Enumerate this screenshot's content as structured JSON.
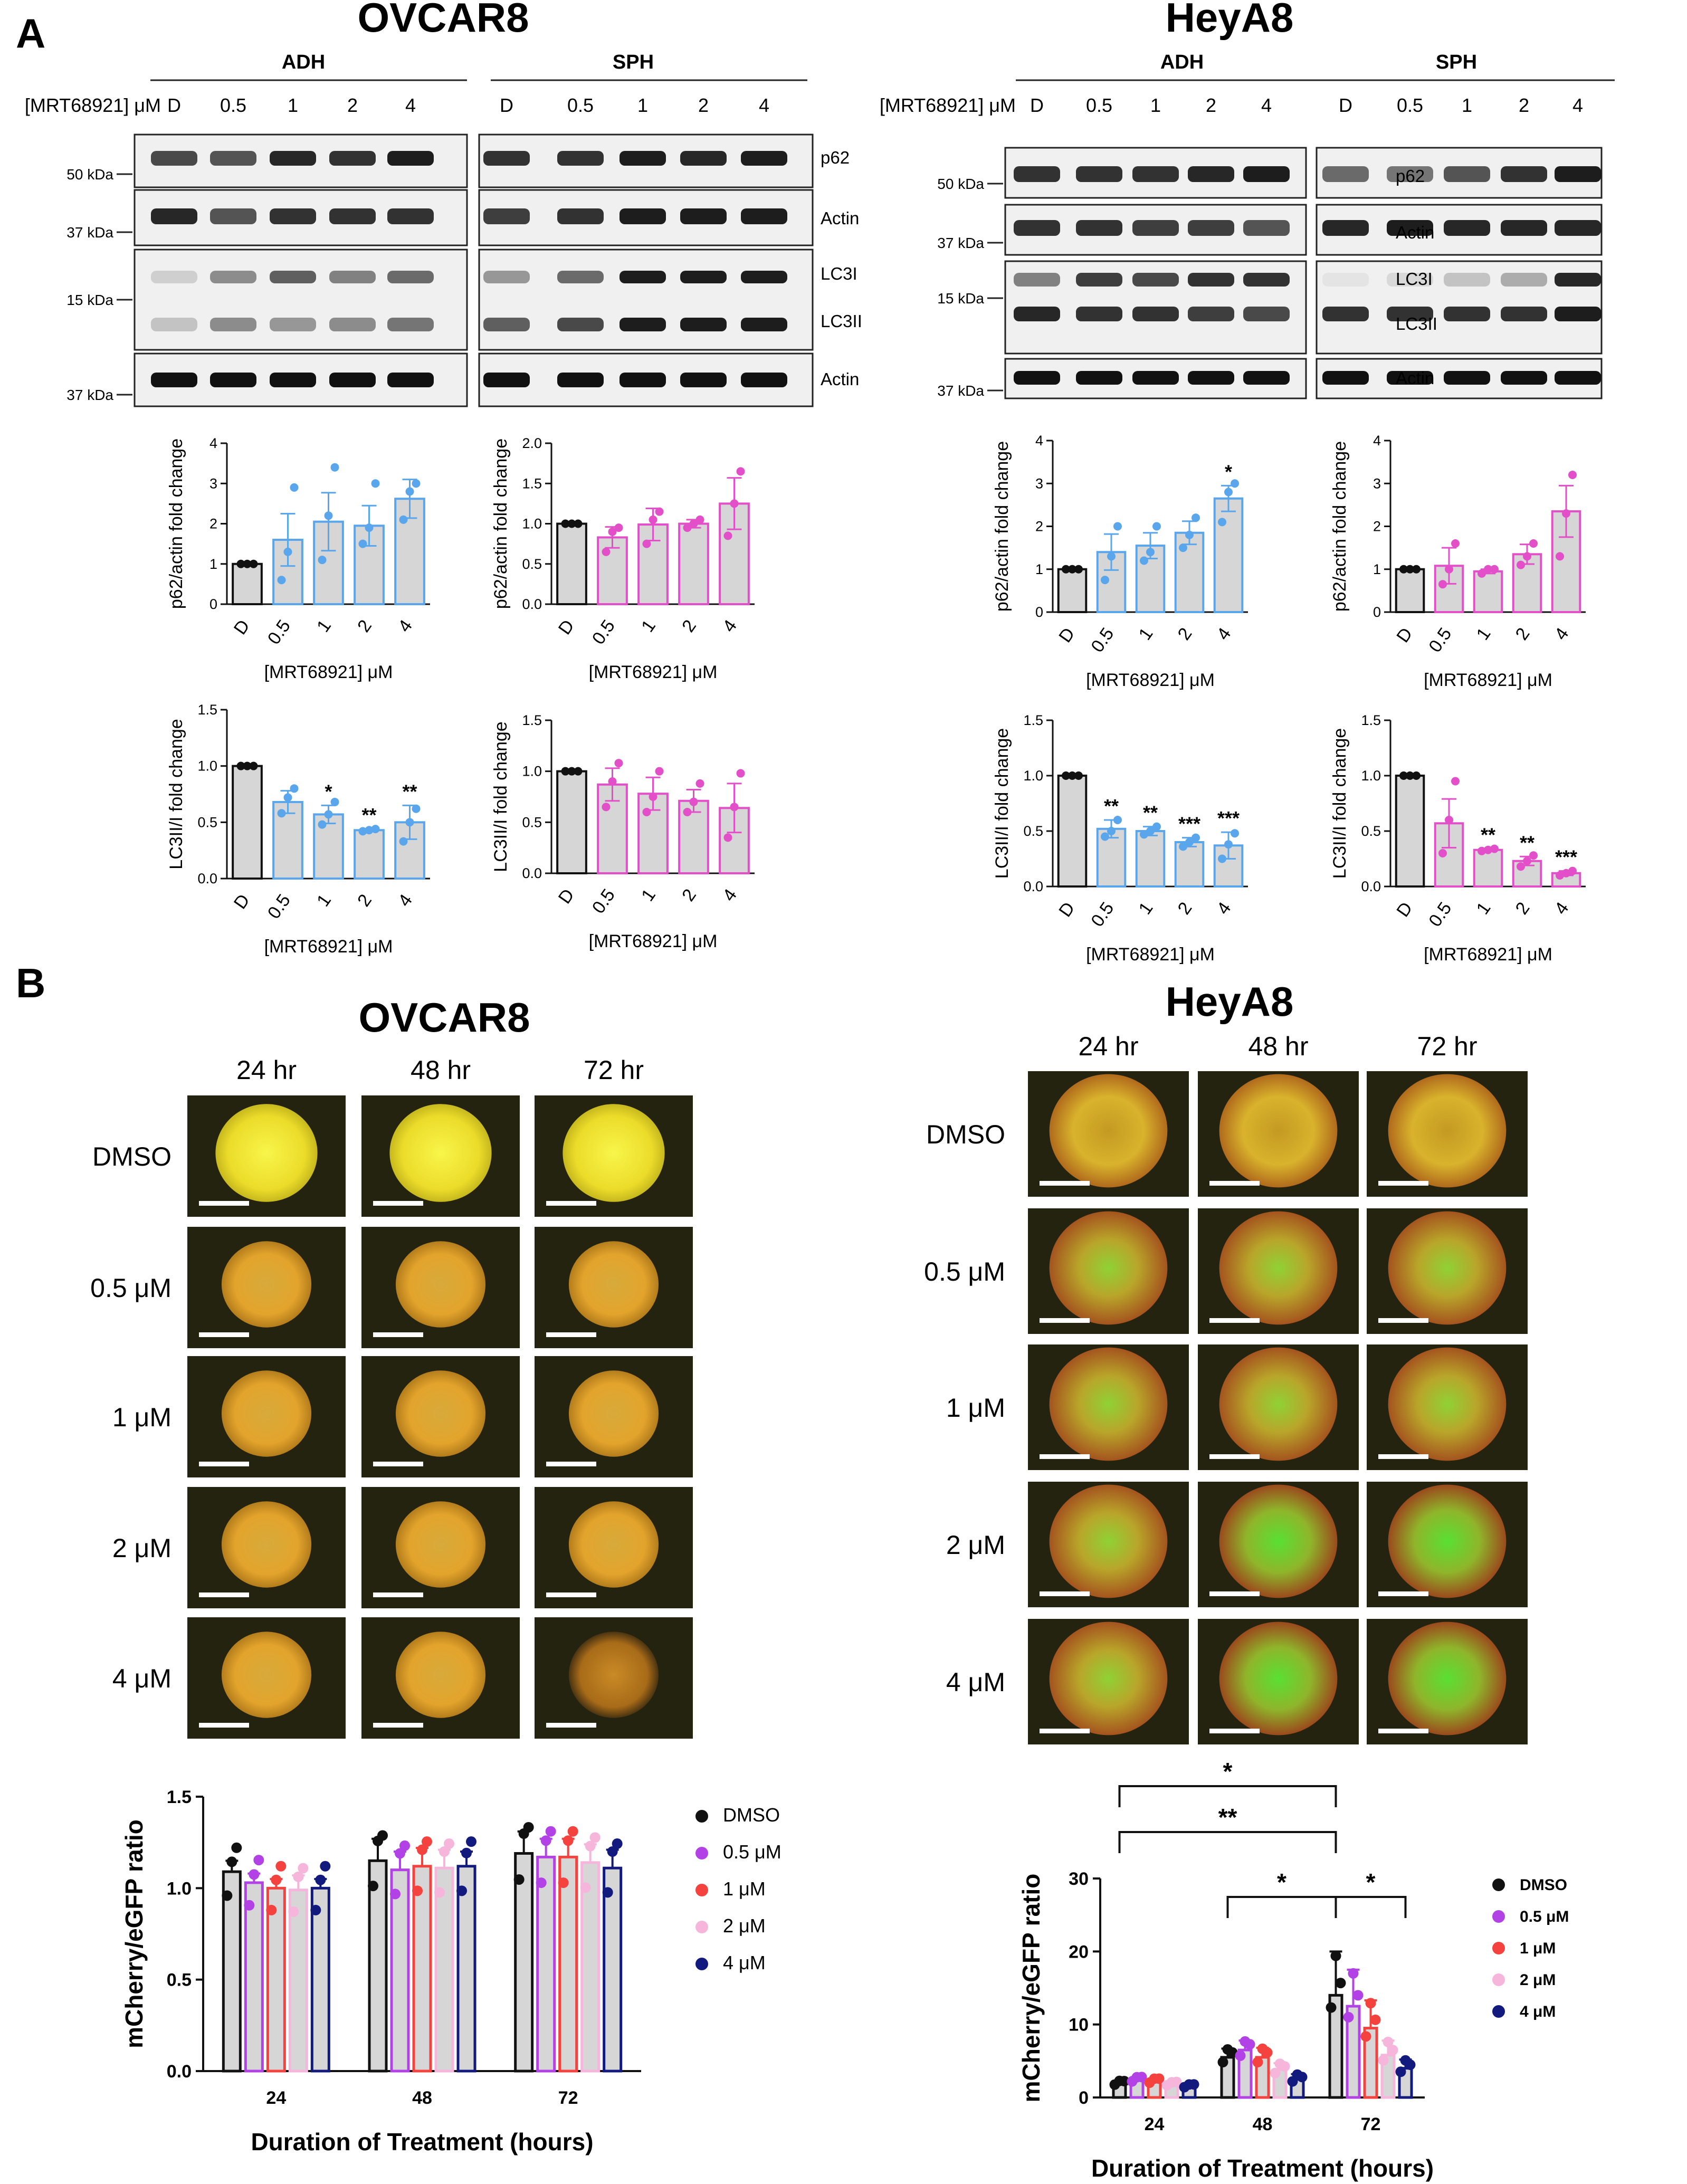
{
  "panel_labels": {
    "a": "A",
    "b": "B"
  },
  "colors": {
    "black": "#111111",
    "blue": "#59a6ec",
    "magenta": "#e24fc9",
    "bar_fill": "#d6d6d6",
    "mcherry_dmso": "#111111",
    "mcherry_05": "#b342e6",
    "mcherry_1": "#f4433e",
    "mcherry_2": "#f6b6dc",
    "mcherry_4": "#131a7d",
    "blot_bg": "#f0f0f0",
    "micro_bg": "#23230f"
  },
  "western": {
    "drug_label": "[MRT68921] μM",
    "lanes": [
      "D",
      "0.5",
      "1",
      "2",
      "4"
    ],
    "groups": [
      "ADH",
      "SPH"
    ],
    "ovcar8": {
      "title": "OVCAR8",
      "bands": [
        "p62",
        "Actin",
        "LC3I",
        "LC3II",
        "Actin"
      ],
      "markers": [
        "50 kDa",
        "37 kDa",
        "15 kDa",
        "37 kDa"
      ]
    },
    "heya8": {
      "title": "HeyA8",
      "bands": [
        "p62",
        "Actin",
        "LC3I",
        "LC3II",
        "Actin"
      ],
      "markers": [
        "50 kDa",
        "37 kDa",
        "15 kDa",
        "37 kDa"
      ]
    }
  },
  "chart_data": [
    {
      "id": "ovcar8-adh-p62",
      "type": "bar",
      "categories": [
        "D",
        "0.5",
        "1",
        "2",
        "4"
      ],
      "values": [
        1.0,
        1.6,
        2.05,
        1.95,
        2.62
      ],
      "errors": [
        0,
        0.65,
        0.72,
        0.5,
        0.48
      ],
      "points": [
        [
          1,
          1,
          1
        ],
        [
          0.6,
          1.3,
          2.9
        ],
        [
          1.1,
          2.2,
          3.4
        ],
        [
          1.5,
          1.9,
          3.0
        ],
        [
          2.1,
          2.8,
          3.0
        ]
      ],
      "ylabel": "p62/actin fold change",
      "xlabel": "[MRT68921] μM",
      "ylim": [
        0,
        4
      ],
      "yticks": [
        "0",
        "1",
        "2",
        "3",
        "4"
      ],
      "sig": [
        "",
        "",
        "",
        "",
        ""
      ],
      "color": "blue"
    },
    {
      "id": "ovcar8-sph-p62",
      "type": "bar",
      "categories": [
        "D",
        "0.5",
        "1",
        "2",
        "4"
      ],
      "values": [
        1.0,
        0.83,
        0.99,
        1.0,
        1.25
      ],
      "errors": [
        0,
        0.13,
        0.2,
        0.05,
        0.32
      ],
      "points": [
        [
          1,
          1,
          1
        ],
        [
          0.65,
          0.9,
          0.95
        ],
        [
          0.75,
          1.05,
          1.15
        ],
        [
          0.95,
          1.0,
          1.05
        ],
        [
          0.85,
          1.25,
          1.65
        ]
      ],
      "ylabel": "p62/actin fold change",
      "xlabel": "[MRT68921] μM",
      "ylim": [
        0,
        2.0
      ],
      "yticks": [
        "0.0",
        "0.5",
        "1.0",
        "1.5",
        "2.0"
      ],
      "sig": [
        "",
        "",
        "",
        "",
        ""
      ],
      "color": "magenta"
    },
    {
      "id": "heya8-adh-p62",
      "type": "bar",
      "categories": [
        "D",
        "0.5",
        "1",
        "2",
        "4"
      ],
      "values": [
        1.0,
        1.4,
        1.55,
        1.85,
        2.65
      ],
      "errors": [
        0,
        0.42,
        0.3,
        0.27,
        0.3
      ],
      "points": [
        [
          1,
          1,
          1
        ],
        [
          0.75,
          1.3,
          2.0
        ],
        [
          1.2,
          1.4,
          2.0
        ],
        [
          1.5,
          1.8,
          2.2
        ],
        [
          2.1,
          2.8,
          3.0
        ]
      ],
      "ylabel": "p62/actin fold change",
      "xlabel": "[MRT68921] μM",
      "ylim": [
        0,
        4
      ],
      "yticks": [
        "0",
        "1",
        "2",
        "3",
        "4"
      ],
      "sig": [
        "",
        "",
        "",
        "",
        "*"
      ],
      "color": "blue"
    },
    {
      "id": "heya8-sph-p62",
      "type": "bar",
      "categories": [
        "D",
        "0.5",
        "1",
        "2",
        "4"
      ],
      "values": [
        1.0,
        1.08,
        0.95,
        1.35,
        2.35
      ],
      "errors": [
        0,
        0.42,
        0.05,
        0.23,
        0.6
      ],
      "points": [
        [
          1,
          1,
          1
        ],
        [
          0.65,
          1.0,
          1.6
        ],
        [
          0.9,
          1.0,
          1.0
        ],
        [
          1.1,
          1.3,
          1.6
        ],
        [
          1.3,
          2.3,
          3.2
        ]
      ],
      "ylabel": "p62/actin fold change",
      "xlabel": "[MRT68921] μM",
      "ylim": [
        0,
        4
      ],
      "yticks": [
        "0",
        "1",
        "2",
        "3",
        "4"
      ],
      "sig": [
        "",
        "",
        "",
        "",
        ""
      ],
      "color": "magenta"
    },
    {
      "id": "ovcar8-adh-lc3",
      "type": "bar",
      "categories": [
        "D",
        "0.5",
        "1",
        "2",
        "4"
      ],
      "values": [
        1.0,
        0.68,
        0.57,
        0.43,
        0.5
      ],
      "errors": [
        0,
        0.1,
        0.08,
        0.01,
        0.15
      ],
      "points": [
        [
          1,
          1,
          1
        ],
        [
          0.58,
          0.72,
          0.8
        ],
        [
          0.48,
          0.57,
          0.68
        ],
        [
          0.42,
          0.43,
          0.44
        ],
        [
          0.33,
          0.5,
          0.62
        ]
      ],
      "ylabel": "LC3II/I fold change",
      "xlabel": "[MRT68921] μM",
      "ylim": [
        0,
        1.5
      ],
      "yticks": [
        "0.0",
        "0.5",
        "1.0",
        "1.5"
      ],
      "sig": [
        "",
        "",
        "*",
        "**",
        "**"
      ],
      "color": "blue"
    },
    {
      "id": "ovcar8-sph-lc3",
      "type": "bar",
      "categories": [
        "D",
        "0.5",
        "1",
        "2",
        "4"
      ],
      "values": [
        1.0,
        0.87,
        0.78,
        0.71,
        0.64
      ],
      "errors": [
        0,
        0.16,
        0.16,
        0.11,
        0.24
      ],
      "points": [
        [
          1,
          1,
          1
        ],
        [
          0.65,
          0.9,
          1.08
        ],
        [
          0.6,
          0.75,
          1.0
        ],
        [
          0.6,
          0.7,
          0.88
        ],
        [
          0.35,
          0.65,
          0.98
        ]
      ],
      "ylabel": "LC3II/I fold change",
      "xlabel": "[MRT68921] μM",
      "ylim": [
        0,
        1.5
      ],
      "yticks": [
        "0.0",
        "0.5",
        "1.0",
        "1.5"
      ],
      "sig": [
        "",
        "",
        "",
        "",
        ""
      ],
      "color": "magenta"
    },
    {
      "id": "heya8-adh-lc3",
      "type": "bar",
      "categories": [
        "D",
        "0.5",
        "1",
        "2",
        "4"
      ],
      "values": [
        1.0,
        0.52,
        0.5,
        0.4,
        0.37
      ],
      "errors": [
        0,
        0.08,
        0.04,
        0.04,
        0.12
      ],
      "points": [
        [
          1,
          1,
          1
        ],
        [
          0.45,
          0.5,
          0.6
        ],
        [
          0.47,
          0.5,
          0.54
        ],
        [
          0.36,
          0.4,
          0.44
        ],
        [
          0.25,
          0.38,
          0.48
        ]
      ],
      "ylabel": "LC3II/I fold change",
      "xlabel": "[MRT68921] μM",
      "ylim": [
        0,
        1.5
      ],
      "yticks": [
        "0.0",
        "0.5",
        "1.0",
        "1.5"
      ],
      "sig": [
        "",
        "**",
        "**",
        "***",
        "***"
      ],
      "color": "blue"
    },
    {
      "id": "heya8-sph-lc3",
      "type": "bar",
      "categories": [
        "D",
        "0.5",
        "1",
        "2",
        "4"
      ],
      "values": [
        1.0,
        0.57,
        0.33,
        0.23,
        0.12
      ],
      "errors": [
        0,
        0.22,
        0.01,
        0.04,
        0.02
      ],
      "points": [
        [
          1,
          1,
          1
        ],
        [
          0.3,
          0.6,
          0.95
        ],
        [
          0.32,
          0.33,
          0.34
        ],
        [
          0.18,
          0.23,
          0.28
        ],
        [
          0.1,
          0.12,
          0.14
        ]
      ],
      "ylabel": "LC3II/I fold change",
      "xlabel": "[MRT68921] μM",
      "ylim": [
        0,
        1.5
      ],
      "yticks": [
        "0.0",
        "0.5",
        "1.0",
        "1.5"
      ],
      "sig": [
        "",
        "",
        "**",
        "**",
        "***"
      ],
      "color": "magenta"
    },
    {
      "id": "ovcar8-ratio",
      "type": "bar",
      "categories": [
        "24",
        "48",
        "72"
      ],
      "series": [
        {
          "name": "DMSO",
          "values": [
            1.09,
            1.15,
            1.19
          ],
          "errors": [
            0.06,
            0.12,
            0.12
          ]
        },
        {
          "name": "0.5 μM",
          "values": [
            1.03,
            1.1,
            1.17
          ],
          "errors": [
            0.05,
            0.1,
            0.1
          ]
        },
        {
          "name": "1 μM",
          "values": [
            1.0,
            1.12,
            1.17
          ],
          "errors": [
            0.05,
            0.1,
            0.1
          ]
        },
        {
          "name": "2 μM",
          "values": [
            0.99,
            1.11,
            1.14
          ],
          "errors": [
            0.08,
            0.1,
            0.1
          ]
        },
        {
          "name": "4 μM",
          "values": [
            1.0,
            1.12,
            1.11
          ],
          "errors": [
            0.05,
            0.08,
            0.1
          ]
        }
      ],
      "ylabel": "mCherry/eGFP ratio",
      "xlabel": "Duration of Treatment (hours)",
      "ylim": [
        0,
        1.5
      ],
      "yticks": [
        "0.0",
        "0.5",
        "1.0",
        "1.5"
      ]
    },
    {
      "id": "heya8-ratio",
      "type": "bar",
      "categories": [
        "24",
        "48",
        "72"
      ],
      "series": [
        {
          "name": "DMSO",
          "values": [
            2.0,
            5.5,
            14.0
          ],
          "errors": [
            0.3,
            1.2,
            6.0
          ]
        },
        {
          "name": "0.5 μM",
          "values": [
            2.5,
            6.5,
            12.5
          ],
          "errors": [
            0.3,
            1.3,
            5.0
          ]
        },
        {
          "name": "1 μM",
          "values": [
            2.3,
            5.5,
            9.5
          ],
          "errors": [
            0.3,
            1.3,
            3.8
          ]
        },
        {
          "name": "2 μM",
          "values": [
            1.9,
            3.8,
            5.8
          ],
          "errors": [
            0.2,
            0.9,
            2.0
          ]
        },
        {
          "name": "4 μM",
          "values": [
            1.6,
            2.5,
            4.0
          ],
          "errors": [
            0.2,
            0.7,
            1.2
          ]
        }
      ],
      "ylabel": "mCherry/eGFP ratio",
      "xlabel": "Duration of Treatment (hours)",
      "ylim": [
        0,
        30
      ],
      "yticks": [
        "0",
        "10",
        "20",
        "30"
      ],
      "sig": [
        "*",
        "**",
        "*",
        "*"
      ]
    }
  ],
  "microscopy": {
    "ovcar8": {
      "title": "OVCAR8",
      "times": [
        "24 hr",
        "48 hr",
        "72 hr"
      ],
      "conditions": [
        "DMSO",
        "0.5 μM",
        "1 μM",
        "2 μM",
        "4 μM"
      ]
    },
    "heya8": {
      "title": "HeyA8",
      "times": [
        "24 hr",
        "48 hr",
        "72 hr"
      ],
      "conditions": [
        "DMSO",
        "0.5 μM",
        "1 μM",
        "2 μM",
        "4 μM"
      ]
    }
  }
}
